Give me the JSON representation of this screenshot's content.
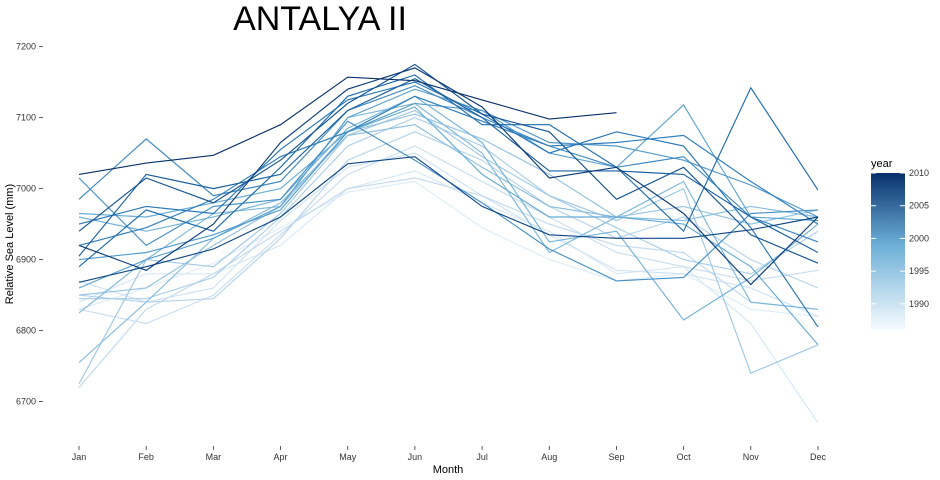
{
  "chart_data": {
    "type": "line",
    "title": "ANTALYA II",
    "xlabel": "Month",
    "ylabel": "Relative Sea Level (mm)",
    "categories": [
      "Jan",
      "Feb",
      "Mar",
      "Apr",
      "May",
      "Jun",
      "Jul",
      "Aug",
      "Sep",
      "Oct",
      "Nov",
      "Dec"
    ],
    "ylim": [
      6660,
      7215
    ],
    "yticks": [
      6700,
      6800,
      6900,
      7000,
      7100,
      7200
    ],
    "grid": false,
    "legend": {
      "title": "year",
      "position": "right",
      "type": "colorbar",
      "range": [
        1986,
        2010
      ],
      "ticks": [
        1990,
        1995,
        2000,
        2005,
        2010
      ],
      "color_low": "#f7fbff",
      "color_high": "#08306b"
    },
    "series": [
      {
        "year": 1986,
        "values": [
          6830,
          6860,
          6895,
          6945,
          6995,
          7010,
          6945,
          6900,
          6870,
          6880,
          6830,
          6820
        ]
      },
      {
        "year": 1987,
        "values": [
          6840,
          6880,
          6880,
          6920,
          7000,
          7025,
          6980,
          6940,
          6880,
          6890,
          6810,
          6670
        ]
      },
      {
        "year": 1988,
        "values": [
          6870,
          6840,
          6860,
          6955,
          7030,
          7050,
          6990,
          6935,
          6885,
          6880,
          6860,
          6820
        ]
      },
      {
        "year": 1989,
        "values": [
          6830,
          6810,
          6850,
          6935,
          7020,
          7060,
          7010,
          6960,
          6910,
          6890,
          6870,
          6885
        ]
      },
      {
        "year": 1990,
        "values": [
          6720,
          6830,
          6880,
          6940,
          7000,
          7015,
          6990,
          6950,
          6920,
          6910,
          6840,
          6830
        ]
      },
      {
        "year": 1991,
        "values": [
          6850,
          6840,
          6845,
          6930,
          7040,
          7080,
          7040,
          6975,
          6930,
          6960,
          6900,
          6860
        ]
      },
      {
        "year": 1992,
        "values": [
          6845,
          6845,
          6875,
          6960,
          7060,
          7100,
          7060,
          6990,
          6945,
          6900,
          6880,
          6940
        ]
      },
      {
        "year": 1993,
        "values": [
          6725,
          6900,
          6890,
          6965,
          7075,
          7110,
          7045,
          6990,
          6955,
          7000,
          6740,
          6780
        ]
      },
      {
        "year": 1994,
        "values": [
          6850,
          6860,
          6920,
          6975,
          7080,
          7105,
          7070,
          7020,
          6960,
          6975,
          6950,
          6970
        ]
      },
      {
        "year": 1995,
        "values": [
          6755,
          6840,
          6930,
          6980,
          7075,
          7090,
          7030,
          6975,
          6960,
          6955,
          6975,
          6960
        ]
      },
      {
        "year": 1996,
        "values": [
          6825,
          6900,
          6965,
          6975,
          7100,
          7120,
          7050,
          6910,
          6960,
          7010,
          6840,
          6830
        ]
      },
      {
        "year": 1997,
        "values": [
          6960,
          6940,
          6960,
          6985,
          7085,
          7130,
          7065,
          6925,
          6940,
          6815,
          6875,
          6950
        ]
      },
      {
        "year": 1998,
        "values": [
          6965,
          6960,
          6980,
          7000,
          7080,
          7115,
          7020,
          6960,
          6960,
          6950,
          6890,
          6780
        ]
      },
      {
        "year": 1999,
        "values": [
          6860,
          6900,
          6930,
          6975,
          7100,
          7140,
          7110,
          7050,
          7030,
          7118,
          6960,
          6955
        ]
      },
      {
        "year": 2000,
        "values": [
          6900,
          6910,
          6935,
          6970,
          7080,
          7120,
          7110,
          7065,
          7060,
          7040,
          7005,
          6960
        ]
      },
      {
        "year": 2001,
        "values": [
          7015,
          6920,
          6975,
          6985,
          7095,
          7040,
          6980,
          6915,
          6870,
          6875,
          6965,
          6970
        ]
      },
      {
        "year": 2002,
        "values": [
          6985,
          7070,
          6990,
          7010,
          7110,
          7145,
          7100,
          7060,
          7030,
          7045,
          6960,
          6925
        ]
      },
      {
        "year": 2003,
        "values": [
          6920,
          6945,
          6985,
          7045,
          7080,
          7130,
          7095,
          7060,
          7065,
          7075,
          7010,
          6950
        ]
      },
      {
        "year": 2004,
        "values": [
          6950,
          6975,
          6965,
          7055,
          7125,
          7150,
          7105,
          7050,
          7080,
          7060,
          6945,
          6805
        ]
      },
      {
        "year": 2005,
        "values": [
          6890,
          6970,
          6940,
          7030,
          7130,
          7160,
          7090,
          7090,
          7030,
          6940,
          7142,
          6998
        ]
      },
      {
        "year": 2006,
        "values": [
          6905,
          7020,
          7000,
          7020,
          7110,
          7155,
          7100,
          7025,
          7025,
          7020,
          6960,
          6910
        ]
      },
      {
        "year": 2007,
        "values": [
          6940,
          7015,
          6980,
          7040,
          7120,
          7175,
          7105,
          7080,
          6985,
          7030,
          6935,
          6895
        ]
      },
      {
        "year": 2008,
        "values": [
          6868,
          6890,
          6915,
          6960,
          7035,
          7045,
          6975,
          6935,
          6930,
          6930,
          6942,
          6960
        ]
      },
      {
        "year": 2009,
        "values": [
          6920,
          6885,
          6950,
          7065,
          7140,
          7170,
          7115,
          7015,
          7030,
          6965,
          6865,
          6960
        ]
      },
      {
        "year": 2010,
        "values": [
          7020,
          7036,
          7047,
          7090,
          7157,
          7152,
          7125,
          7098,
          7107,
          null,
          null,
          null
        ]
      }
    ]
  }
}
